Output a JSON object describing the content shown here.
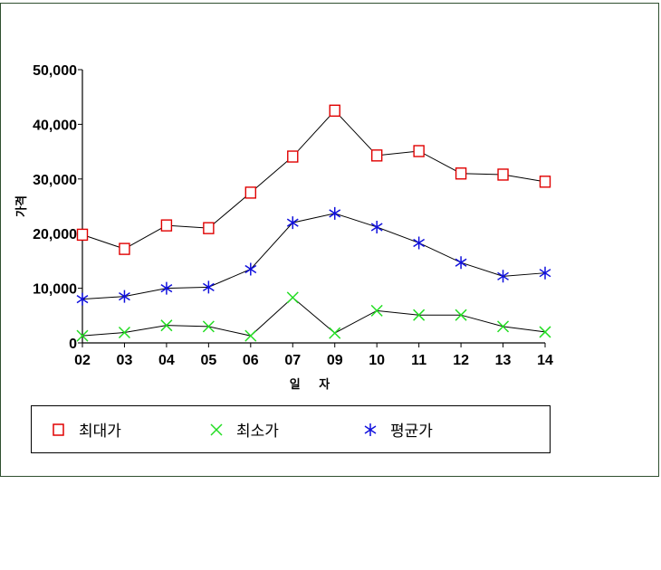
{
  "chart_data": {
    "type": "line",
    "categories": [
      "02",
      "03",
      "04",
      "05",
      "06",
      "07",
      "09",
      "10",
      "11",
      "12",
      "13",
      "14"
    ],
    "series": [
      {
        "name": "최대가",
        "marker": "square",
        "color": "#e00000",
        "values": [
          19800,
          17200,
          21500,
          21000,
          27500,
          34100,
          42500,
          34300,
          35100,
          31000,
          30800,
          29500
        ]
      },
      {
        "name": "최소가",
        "marker": "x",
        "color": "#22dd22",
        "values": [
          1300,
          1900,
          3200,
          3000,
          1300,
          8300,
          1800,
          5900,
          5100,
          5100,
          3000,
          2000
        ]
      },
      {
        "name": "평균가",
        "marker": "asterisk",
        "color": "#1010dd",
        "values": [
          8000,
          8500,
          10000,
          10200,
          13500,
          22000,
          23700,
          21200,
          18300,
          14700,
          12200,
          12800
        ]
      }
    ],
    "yticks": [
      "0",
      "10,000",
      "20,000",
      "30,000",
      "40,000",
      "50,000"
    ],
    "ylim": [
      0,
      50000
    ],
    "ylabel": "가격",
    "xlabel": "일 자",
    "line_color": "#000000",
    "legend_position": "bottom",
    "grid": false
  }
}
